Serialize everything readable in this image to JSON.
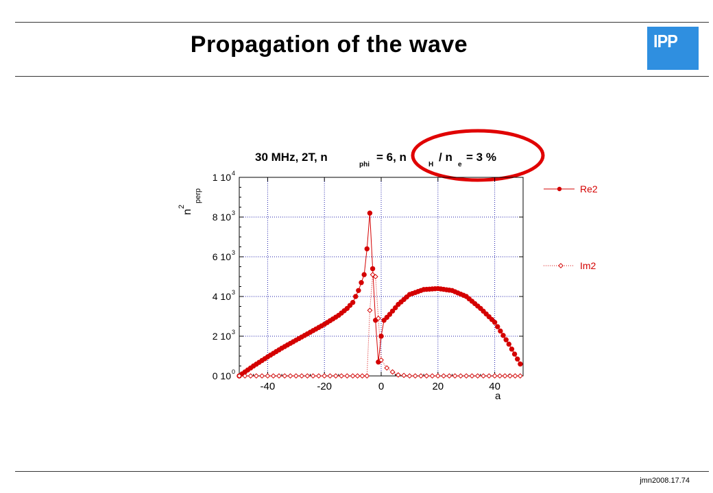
{
  "slide": {
    "title": "Propagation of the wave",
    "logo_text": "IPP",
    "footer_ref": "jmn2008.17.74",
    "colors": {
      "logo": "#2f8fe0",
      "series": "#d40000",
      "highlight_circle": "#e00000"
    }
  },
  "chart_data": {
    "type": "line",
    "title_parts": {
      "t1": "30 MHz, 2T, n",
      "s1": "phi",
      "t2": "= 6,  n",
      "s2": "H",
      "t3": "/ n",
      "s3": "e",
      "t4": "= 3 %"
    },
    "ylabel": {
      "base": "n",
      "sup": "2",
      "sub": "perp"
    },
    "xlabel": "a",
    "xlim": [
      -50,
      50
    ],
    "ylim": [
      0,
      10000
    ],
    "x_ticks": [
      -40,
      -20,
      0,
      20,
      40
    ],
    "y_ticks": [
      {
        "value": 10000,
        "label": "1 10",
        "exp": "4"
      },
      {
        "value": 8000,
        "label": "8 10",
        "exp": "3"
      },
      {
        "value": 6000,
        "label": "6 10",
        "exp": "3"
      },
      {
        "value": 4000,
        "label": "4 10",
        "exp": "3"
      },
      {
        "value": 2000,
        "label": "2 10",
        "exp": "3"
      },
      {
        "value": 0,
        "label": "0 10",
        "exp": "0"
      }
    ],
    "grid": true,
    "legend_position": "right",
    "series": [
      {
        "name": "Re2",
        "style": "solid line, filled circle markers",
        "points": [
          [
            -50,
            0
          ],
          [
            -45,
            500
          ],
          [
            -40,
            960
          ],
          [
            -35,
            1400
          ],
          [
            -30,
            1800
          ],
          [
            -25,
            2200
          ],
          [
            -20,
            2600
          ],
          [
            -15,
            3050
          ],
          [
            -12,
            3400
          ],
          [
            -10,
            3700
          ],
          [
            -8,
            4300
          ],
          [
            -6,
            5100
          ],
          [
            -5,
            6400
          ],
          [
            -4,
            8200
          ],
          [
            -3,
            5400
          ],
          [
            -2,
            2800
          ],
          [
            -1,
            700
          ],
          [
            0,
            2000
          ],
          [
            1,
            2800
          ],
          [
            3,
            3100
          ],
          [
            6,
            3600
          ],
          [
            10,
            4100
          ],
          [
            15,
            4350
          ],
          [
            20,
            4400
          ],
          [
            25,
            4300
          ],
          [
            30,
            4000
          ],
          [
            35,
            3400
          ],
          [
            40,
            2700
          ],
          [
            45,
            1600
          ],
          [
            49,
            600
          ]
        ]
      },
      {
        "name": "Im2",
        "style": "dotted line, open diamond markers",
        "points": [
          [
            -50,
            0
          ],
          [
            -10,
            0
          ],
          [
            -5,
            0
          ],
          [
            -4,
            3300
          ],
          [
            -3,
            5100
          ],
          [
            -2,
            5000
          ],
          [
            -1,
            2900
          ],
          [
            0,
            800
          ],
          [
            2,
            400
          ],
          [
            4,
            200
          ],
          [
            6,
            50
          ],
          [
            10,
            0
          ],
          [
            20,
            0
          ],
          [
            30,
            0
          ],
          [
            40,
            0
          ],
          [
            49,
            0
          ]
        ]
      }
    ]
  }
}
